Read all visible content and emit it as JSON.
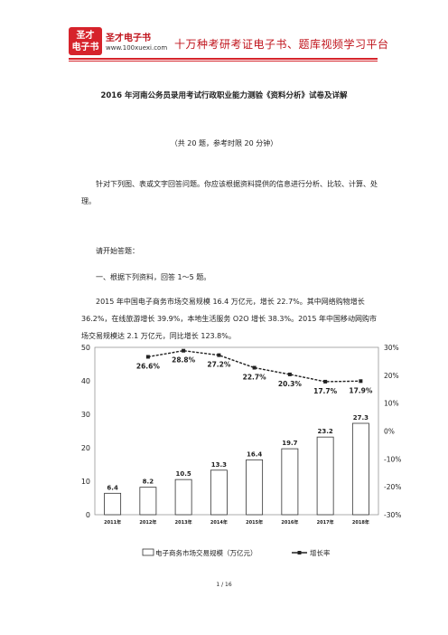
{
  "header": {
    "logo_line1": "圣才",
    "logo_line2": "电子书",
    "brand": "圣才电子书",
    "url": "www.100xuexi.com",
    "slogan": "十万种考研考证电子书、题库视频学习平台"
  },
  "doc": {
    "title": "2016 年河南公务员录用考试行政职业能力测验《资料分析》试卷及详解",
    "subtitle": "（共 20 题，参考时限 20 分钟）",
    "instruction": "针对下列图、表或文字回答问题。你应该根据资料提供的信息进行分析、比较、计算、处理。",
    "start": "请开始答题：",
    "section": "一、根据下列资料，回答 1～5 题。",
    "passage": "2015 年中国电子商务市场交易规模 16.4 万亿元，增长 22.7%。其中网络购物增长 36.2%，在线旅游增长 39.9%，本地生活服务 O2O 增长 38.3%。2015 年中国移动网购市场交易规模达 2.1 万亿元，同比增长 123.8%。"
  },
  "chart_data": {
    "type": "bar",
    "categories": [
      "2011年",
      "2012年",
      "2013年",
      "2014年",
      "2015年",
      "2016年",
      "2017年",
      "2018年"
    ],
    "series": [
      {
        "name": "电子商务市场交易规模（万亿元）",
        "type": "bar",
        "axis": "left",
        "values": [
          6.4,
          8.2,
          10.5,
          13.3,
          16.4,
          19.7,
          23.2,
          27.3
        ],
        "labels": [
          "6.4",
          "8.2",
          "10.5",
          "13.3",
          "16.4",
          "19.7",
          "23.2",
          "27.3"
        ]
      },
      {
        "name": "增长率",
        "type": "line",
        "axis": "right",
        "values": [
          null,
          26.6,
          28.8,
          27.2,
          22.7,
          20.3,
          17.7,
          17.9
        ],
        "labels": [
          null,
          "26.6%",
          "28.8%",
          "27.2%",
          "22.7%",
          "20.3%",
          "17.7%",
          "17.9%"
        ]
      }
    ],
    "left_axis": {
      "min": 0,
      "max": 50,
      "ticks": [
        "0",
        "10",
        "20",
        "30",
        "40",
        "50"
      ]
    },
    "right_axis": {
      "min": -30,
      "max": 30,
      "ticks": [
        "-30%",
        "-20%",
        "-10%",
        "0%",
        "10%",
        "20%",
        "30%"
      ]
    },
    "grid": false,
    "legend_placement": "bottom"
  },
  "footer": {
    "page": "1 / 16"
  }
}
